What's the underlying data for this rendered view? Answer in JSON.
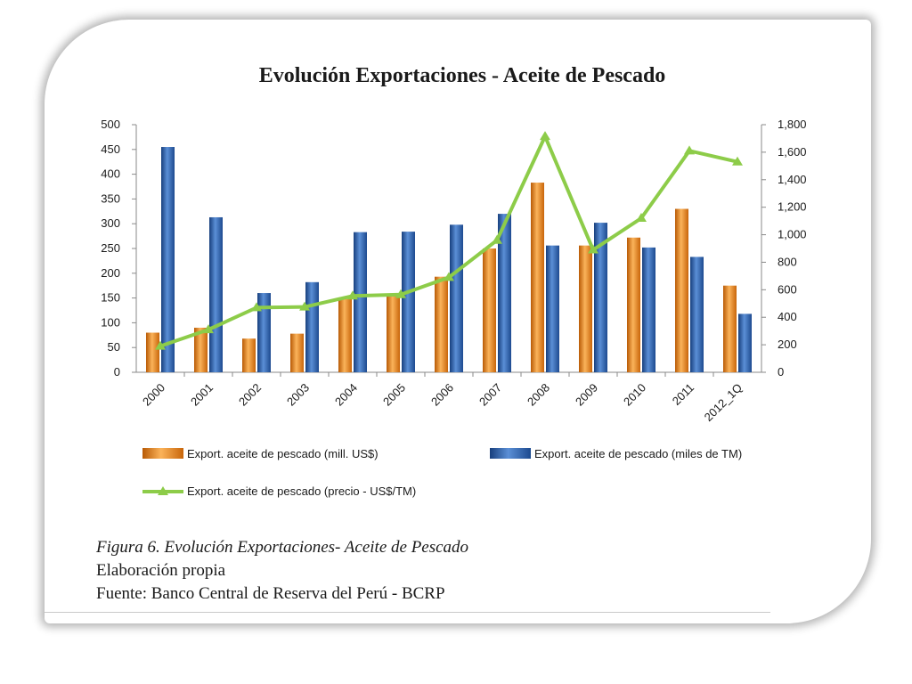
{
  "chart_data": {
    "type": "bar",
    "title": "Evolución Exportaciones - Aceite de Pescado",
    "categories": [
      "2000",
      "2001",
      "2002",
      "2003",
      "2004",
      "2005",
      "2006",
      "2007",
      "2008",
      "2009",
      "2010",
      "2011",
      "2012_1Q"
    ],
    "series": [
      {
        "name": "Export. aceite de pescado (mill. US$)",
        "type": "bar",
        "axis": "left",
        "color": "#f28a1e",
        "values": [
          80,
          90,
          68,
          78,
          148,
          155,
          193,
          250,
          383,
          256,
          272,
          330,
          175
        ]
      },
      {
        "name": "Export. aceite de pescado (miles de TM)",
        "type": "bar",
        "axis": "left",
        "color": "#2f66b3",
        "values": [
          455,
          313,
          160,
          182,
          283,
          284,
          298,
          320,
          256,
          302,
          252,
          233,
          118
        ]
      },
      {
        "name": "Export. aceite de pescado (precio - US$/TM)",
        "type": "line",
        "axis": "right",
        "color": "#8dcc49",
        "values": [
          190,
          310,
          470,
          475,
          555,
          565,
          690,
          960,
          1715,
          890,
          1120,
          1610,
          1530
        ]
      }
    ],
    "ylim_left": [
      0,
      500
    ],
    "yticks_left": [
      "0",
      "50",
      "100",
      "150",
      "200",
      "250",
      "300",
      "350",
      "400",
      "450",
      "500"
    ],
    "ylim_right": [
      0,
      1800
    ],
    "yticks_right": [
      "0",
      "200",
      "400",
      "600",
      "800",
      "1,000",
      "1,200",
      "1,400",
      "1,600",
      "1,800"
    ],
    "grid": false,
    "legend": "bottom"
  },
  "caption": {
    "figure": "Figura 6. Evolución Exportaciones- Aceite de Pescado",
    "line2": "Elaboración propia",
    "line3": "Fuente: Banco Central de Reserva del Perú - BCRP"
  }
}
